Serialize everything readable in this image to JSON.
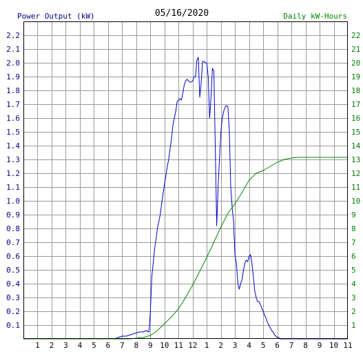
{
  "chart_data": {
    "type": "line",
    "title": "05/16/2020",
    "ylabel": "Power Output (kW)",
    "y2label": "Daily kW-Hours",
    "ylim": [
      0,
      2.3
    ],
    "y2lim": [
      0,
      23
    ],
    "xlim": [
      0,
      23
    ],
    "grid": true,
    "x_tick_labels": [
      "1",
      "2",
      "3",
      "4",
      "5",
      "6",
      "7",
      "8",
      "9",
      "10",
      "11",
      "12",
      "1",
      "2",
      "3",
      "4",
      "5",
      "6",
      "7",
      "8",
      "9",
      "10",
      "11"
    ],
    "y_tick_labels": [
      "0.1",
      "0.2",
      "0.3",
      "0.4",
      "0.5",
      "0.6",
      "0.7",
      "0.8",
      "0.9",
      "1.0",
      "1.1",
      "1.2",
      "1.3",
      "1.4",
      "1.5",
      "1.6",
      "1.7",
      "1.8",
      "1.9",
      "2.0",
      "2.1",
      "2.2"
    ],
    "y2_tick_labels": [
      "1",
      "2",
      "3",
      "4",
      "5",
      "6",
      "7",
      "8",
      "9",
      "10",
      "11",
      "12",
      "13",
      "14",
      "15",
      "16",
      "17",
      "18",
      "19",
      "20",
      "21",
      "22"
    ],
    "colors": {
      "power": "#0000cc",
      "energy": "#008800",
      "left_axis": "#000080",
      "right_axis": "#008000",
      "grid": "#999999"
    },
    "series": [
      {
        "name": "Power Output (kW)",
        "axis": "left",
        "x": [
          0,
          6.5,
          6.7,
          7.0,
          7.3,
          7.6,
          7.9,
          8.2,
          8.5,
          8.7,
          8.9,
          9.0,
          9.1,
          9.2,
          9.3,
          9.4,
          9.5,
          9.6,
          9.7,
          9.8,
          9.9,
          10.0,
          10.1,
          10.2,
          10.3,
          10.4,
          10.5,
          10.6,
          10.7,
          10.8,
          10.9,
          11.0,
          11.1,
          11.2,
          11.3,
          11.4,
          11.5,
          11.6,
          11.7,
          11.8,
          11.9,
          12.0,
          12.1,
          12.2,
          12.3,
          12.4,
          12.5,
          12.6,
          12.7,
          12.8,
          12.9,
          13.0,
          13.1,
          13.2,
          13.3,
          13.4,
          13.5,
          13.6,
          13.7,
          13.8,
          13.9,
          14.0,
          14.1,
          14.2,
          14.3,
          14.4,
          14.5,
          14.6,
          14.7,
          14.8,
          14.9,
          15.0,
          15.1,
          15.2,
          15.3,
          15.4,
          15.5,
          15.6,
          15.7,
          15.8,
          15.9,
          16.0,
          16.1,
          16.2,
          16.3,
          16.4,
          16.5,
          16.6,
          16.7,
          16.8,
          16.9,
          17.0,
          17.1,
          17.2,
          17.3,
          17.4,
          17.5,
          17.6,
          17.7,
          17.8,
          17.9,
          18.0,
          18.1,
          18.2,
          18.3,
          18.4,
          18.5,
          18.6,
          18.7,
          18.8,
          18.9,
          19.0,
          19.2,
          19.4,
          19.6,
          19.8,
          20.0,
          20.2,
          20.5,
          20.8,
          21.5,
          23
        ],
        "y": [
          0,
          0,
          0.01,
          0.02,
          0.02,
          0.03,
          0.04,
          0.05,
          0.05,
          0.06,
          0.05,
          0.2,
          0.45,
          0.55,
          0.65,
          0.72,
          0.8,
          0.85,
          0.9,
          0.98,
          1.05,
          1.12,
          1.18,
          1.25,
          1.3,
          1.38,
          1.45,
          1.55,
          1.6,
          1.65,
          1.72,
          1.73,
          1.74,
          1.73,
          1.78,
          1.84,
          1.87,
          1.88,
          1.87,
          1.86,
          1.86,
          1.87,
          1.9,
          1.9,
          2.02,
          2.04,
          1.75,
          1.85,
          2.01,
          2.01,
          2.0,
          2.0,
          1.9,
          1.6,
          1.75,
          1.96,
          1.94,
          1.4,
          0.82,
          1.1,
          1.3,
          1.5,
          1.6,
          1.65,
          1.68,
          1.69,
          1.68,
          1.5,
          1.1,
          0.95,
          0.85,
          0.6,
          0.55,
          0.4,
          0.36,
          0.4,
          0.43,
          0.5,
          0.55,
          0.57,
          0.56,
          0.6,
          0.61,
          0.55,
          0.45,
          0.35,
          0.3,
          0.27,
          0.27,
          0.25,
          0.22,
          0.2,
          0.17,
          0.15,
          0.12,
          0.1,
          0.08,
          0.06,
          0.05,
          0.03,
          0.02,
          0.01,
          0.01,
          0,
          0,
          0,
          0,
          0,
          0,
          0,
          0,
          0,
          0,
          0,
          0,
          0,
          0,
          0,
          0,
          0,
          0,
          0
        ]
      },
      {
        "name": "Daily kW-Hours",
        "axis": "right",
        "x": [
          0,
          7.5,
          8.0,
          8.5,
          9.0,
          9.5,
          10.0,
          10.5,
          11.0,
          11.5,
          12.0,
          12.5,
          13.0,
          13.5,
          14.0,
          14.5,
          15.0,
          15.5,
          16.0,
          16.5,
          17.0,
          17.5,
          18.0,
          18.5,
          19.0,
          19.5,
          20.0,
          20.5,
          21.0,
          22.0,
          23.0
        ],
        "y": [
          0,
          0,
          0.05,
          0.1,
          0.25,
          0.6,
          1.1,
          1.6,
          2.2,
          3.0,
          3.9,
          4.9,
          5.9,
          7.0,
          8.1,
          9.1,
          9.8,
          10.6,
          11.5,
          12.0,
          12.2,
          12.5,
          12.8,
          13.0,
          13.1,
          13.15,
          13.15,
          13.15,
          13.15,
          13.15,
          13.15
        ]
      }
    ]
  }
}
